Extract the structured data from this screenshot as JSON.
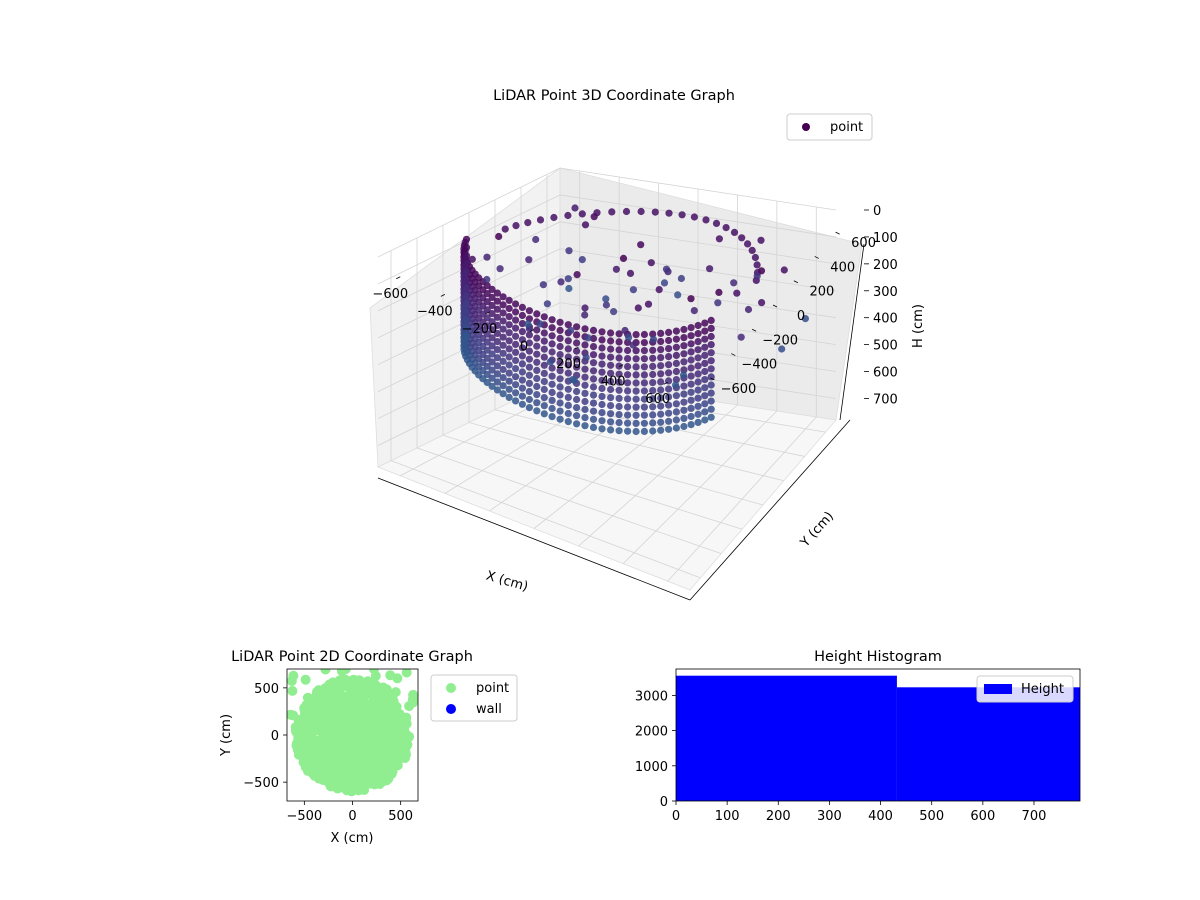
{
  "chart_data": [
    {
      "type": "scatter3d",
      "title": "LiDAR Point 3D Coordinate Graph",
      "xlabel": "X (cm)",
      "ylabel": "Y (cm)",
      "zlabel": "H (cm)",
      "x_ticks": [
        "−600",
        "−400",
        "−200",
        "0",
        "200",
        "400",
        "600"
      ],
      "y_ticks": [
        "−600",
        "−400",
        "−200",
        "0",
        "200",
        "400",
        "600"
      ],
      "z_ticks": [
        "0",
        "100",
        "200",
        "300",
        "400",
        "500",
        "600",
        "700"
      ],
      "xlim": [
        -700,
        700
      ],
      "ylim": [
        -700,
        700
      ],
      "zlim": [
        0,
        780
      ],
      "z_inverted": true,
      "grid": true,
      "colormap": "viridis",
      "legend": {
        "entries": [
          {
            "label": "point",
            "color": "#440154"
          }
        ],
        "placement": "upper-right"
      },
      "description_of_points": "curved wall of points at radius ~600 cm spanning heights 0 to ~380 cm, plus scattered points"
    },
    {
      "type": "scatter",
      "title": "LiDAR Point 2D Coordinate Graph",
      "xlabel": "X (cm)",
      "ylabel": "Y (cm)",
      "x_ticks": [
        "−500",
        "0",
        "500"
      ],
      "y_ticks": [
        "−500",
        "0",
        "500"
      ],
      "xlim": [
        -680,
        680
      ],
      "ylim": [
        -700,
        700
      ],
      "series": [
        {
          "name": "point",
          "color": "#90ee90"
        },
        {
          "name": "wall",
          "color": "#0000ff"
        }
      ],
      "legend_placement": "outside-right"
    },
    {
      "type": "bar",
      "title": "Height Histogram",
      "x_ticks": [
        "0",
        "100",
        "200",
        "300",
        "400",
        "500",
        "600",
        "700"
      ],
      "y_ticks": [
        "0",
        "1000",
        "2000",
        "3000"
      ],
      "xlim": [
        0,
        790
      ],
      "ylim": [
        0,
        3750
      ],
      "bins": [
        {
          "from": 0,
          "to": 432,
          "count": 3560
        },
        {
          "from": 432,
          "to": 790,
          "count": 3230
        }
      ],
      "color": "#0000ff",
      "series": [
        {
          "name": "Height",
          "color": "#0000ff"
        }
      ],
      "legend_placement": "upper-right"
    }
  ]
}
